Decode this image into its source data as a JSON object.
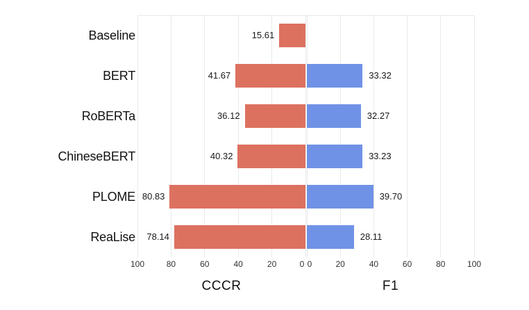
{
  "chart_data": {
    "type": "bar",
    "variant": "diverging-horizontal",
    "title": "",
    "categories": [
      "Baseline",
      "BERT",
      "RoBERTa",
      "ChineseBERT",
      "PLOME",
      "ReaLise"
    ],
    "series": [
      {
        "name": "CCCR",
        "side": "left",
        "color": "#dd7160",
        "values": [
          15.61,
          41.67,
          36.12,
          40.32,
          80.83,
          78.14
        ],
        "labels": [
          "15.61",
          "41.67",
          "36.12",
          "40.32",
          "80.83",
          "78.14"
        ]
      },
      {
        "name": "F1",
        "side": "right",
        "color": "#7092e6",
        "values": [
          null,
          33.32,
          32.27,
          33.23,
          39.7,
          28.11
        ],
        "labels": [
          "",
          "33.32",
          "32.27",
          "33.23",
          "39.70",
          "28.11"
        ]
      }
    ],
    "axes": {
      "xlim": [
        0,
        100
      ],
      "left_ticks": [
        100,
        80,
        60,
        40,
        20,
        0
      ],
      "right_ticks": [
        0,
        20,
        40,
        60,
        80,
        100
      ],
      "grid": true
    },
    "xlabel_left": "CCCR",
    "xlabel_right": "F1",
    "legend": false,
    "colors": {
      "background": "#ffffff",
      "grid": "#e9e9e9",
      "text": "#111111",
      "cccr_bar": "#dd7160",
      "f1_bar": "#7092e6"
    }
  }
}
